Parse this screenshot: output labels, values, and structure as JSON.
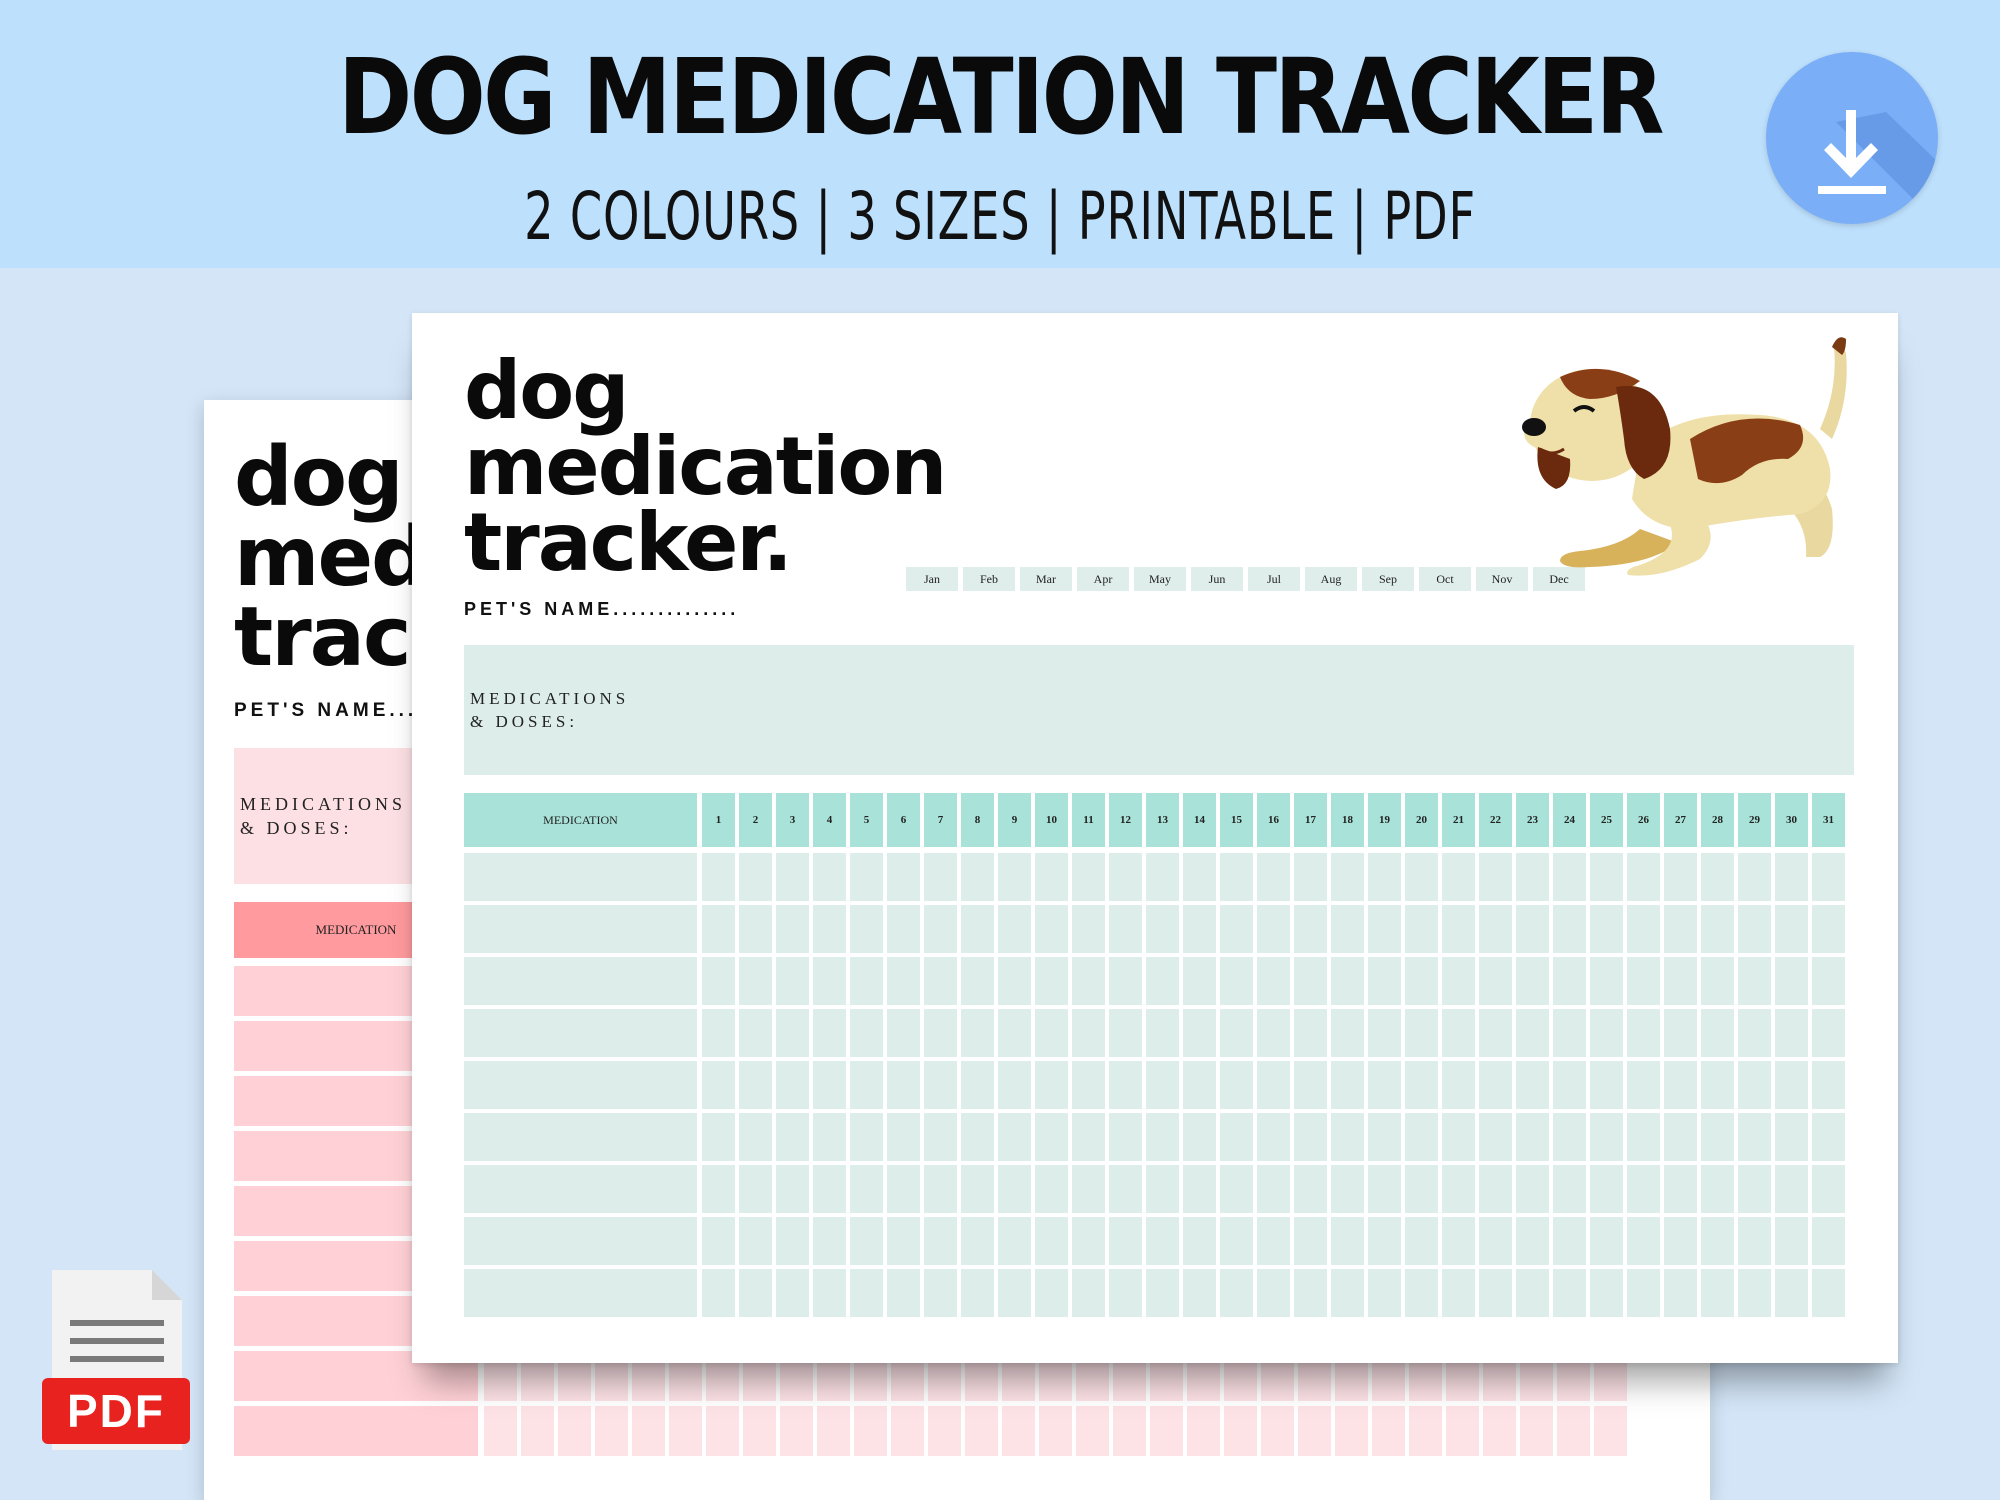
{
  "banner": {
    "title": "DOG MEDICATION TRACKER",
    "subtitle": "2 COLOURS | 3 SIZES | PRINTABLE | PDF"
  },
  "badges": {
    "pdf_label": "PDF"
  },
  "icons": {
    "download": "download-arrow-icon",
    "pdf": "pdf-document-icon",
    "dog": "dog-illustration"
  },
  "colors": {
    "banner_bg": "#bde0fd",
    "teal_header": "#a8e2d8",
    "teal_cell": "#ddede9",
    "pink_header": "#ff9a9e",
    "pink_cell": "#ffd1d6",
    "pdf_red": "#e8221f",
    "download_blue": "#7aaef7"
  },
  "back_page": {
    "title": "dog\nmed\ntrac",
    "pets_name": "PET'S NAME...",
    "meds_label": "MEDICATIONS\n& DOSES:",
    "medication_header": "MEDICATION"
  },
  "front_page": {
    "title": "dog\nmedication\ntracker.",
    "pets_name": "PET'S NAME..............",
    "meds_label": "MEDICATIONS\n& DOSES:",
    "months": [
      "Jan",
      "Feb",
      "Mar",
      "Apr",
      "May",
      "Jun",
      "Jul",
      "Aug",
      "Sep",
      "Oct",
      "Nov",
      "Dec"
    ],
    "medication_header": "MEDICATION",
    "days": [
      "1",
      "2",
      "3",
      "4",
      "5",
      "6",
      "7",
      "8",
      "9",
      "10",
      "11",
      "12",
      "13",
      "14",
      "15",
      "16",
      "17",
      "18",
      "19",
      "20",
      "21",
      "22",
      "23",
      "24",
      "25",
      "26",
      "27",
      "28",
      "29",
      "30",
      "31"
    ],
    "rows": 9
  }
}
